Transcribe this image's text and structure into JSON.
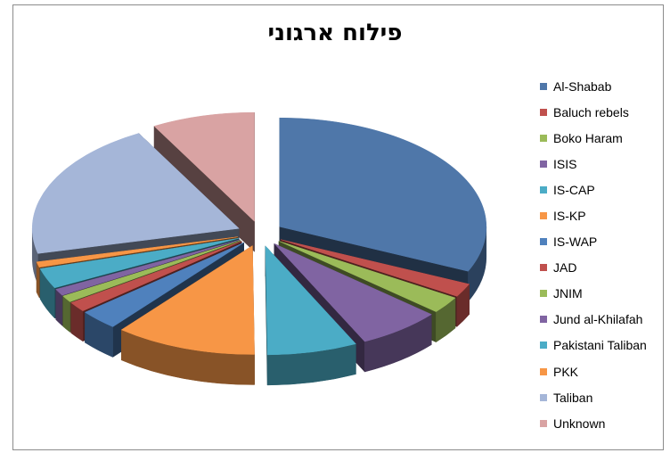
{
  "chart_data": {
    "type": "pie",
    "title": "פילוח ארגוני",
    "style": "3d-exploded",
    "legend_position": "right",
    "series": [
      {
        "name": "Al-Shabab",
        "value": 31.5,
        "color": "#4f77a9"
      },
      {
        "name": "Baluch rebels",
        "value": 2.0,
        "color": "#c0504d"
      },
      {
        "name": "Boko Haram",
        "value": 2.5,
        "color": "#9bbb59"
      },
      {
        "name": "ISIS",
        "value": 6.5,
        "color": "#8064a2"
      },
      {
        "name": "IS-CAP",
        "value": 7.0,
        "color": "#4bacc6"
      },
      {
        "name": "IS-KP",
        "value": 11.0,
        "color": "#f79646"
      },
      {
        "name": "IS-WAP",
        "value": 3.0,
        "color": "#4f81bd"
      },
      {
        "name": "JAD",
        "value": 1.5,
        "color": "#c0504d"
      },
      {
        "name": "JNIM",
        "value": 1.0,
        "color": "#9bbb59"
      },
      {
        "name": "Jund al-Khilafah",
        "value": 1.0,
        "color": "#8064a2"
      },
      {
        "name": "Pakistani Taliban",
        "value": 3.0,
        "color": "#4bacc6"
      },
      {
        "name": "PKK",
        "value": 0.8,
        "color": "#f79646"
      },
      {
        "name": "Taliban",
        "value": 20.5,
        "color": "#a5b6d8"
      },
      {
        "name": "Unknown",
        "value": 8.0,
        "color": "#d9a3a3"
      }
    ]
  }
}
